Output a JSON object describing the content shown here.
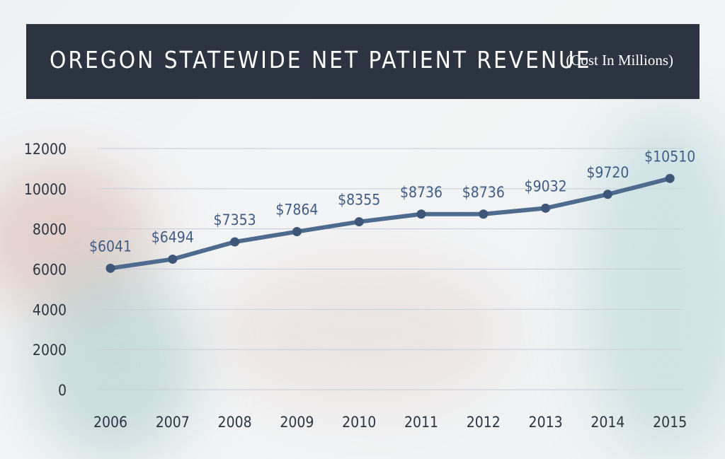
{
  "chart_data": {
    "type": "line",
    "title": "OREGON  STATEWIDE NET PATIENT REVENUE",
    "subtitle": "(Cost In Millions)",
    "categories": [
      "2006",
      "2007",
      "2008",
      "2009",
      "2010",
      "2011",
      "2012",
      "2013",
      "2014",
      "2015"
    ],
    "values": [
      6041,
      6494,
      7353,
      7864,
      8355,
      8736,
      8736,
      9032,
      9720,
      10510
    ],
    "data_labels": [
      "$6041",
      "$6494",
      "$7353",
      "$7864",
      "$8355",
      "$8736",
      "$8736",
      "$9032",
      "$9720",
      "$10510"
    ],
    "y_ticks": [
      0,
      2000,
      4000,
      6000,
      8000,
      10000,
      12000
    ],
    "ylim": [
      0,
      12000
    ],
    "grid": true,
    "colors": {
      "line": "#4e6a8e",
      "label": "#3f5d86",
      "header": "#2c3441"
    }
  }
}
